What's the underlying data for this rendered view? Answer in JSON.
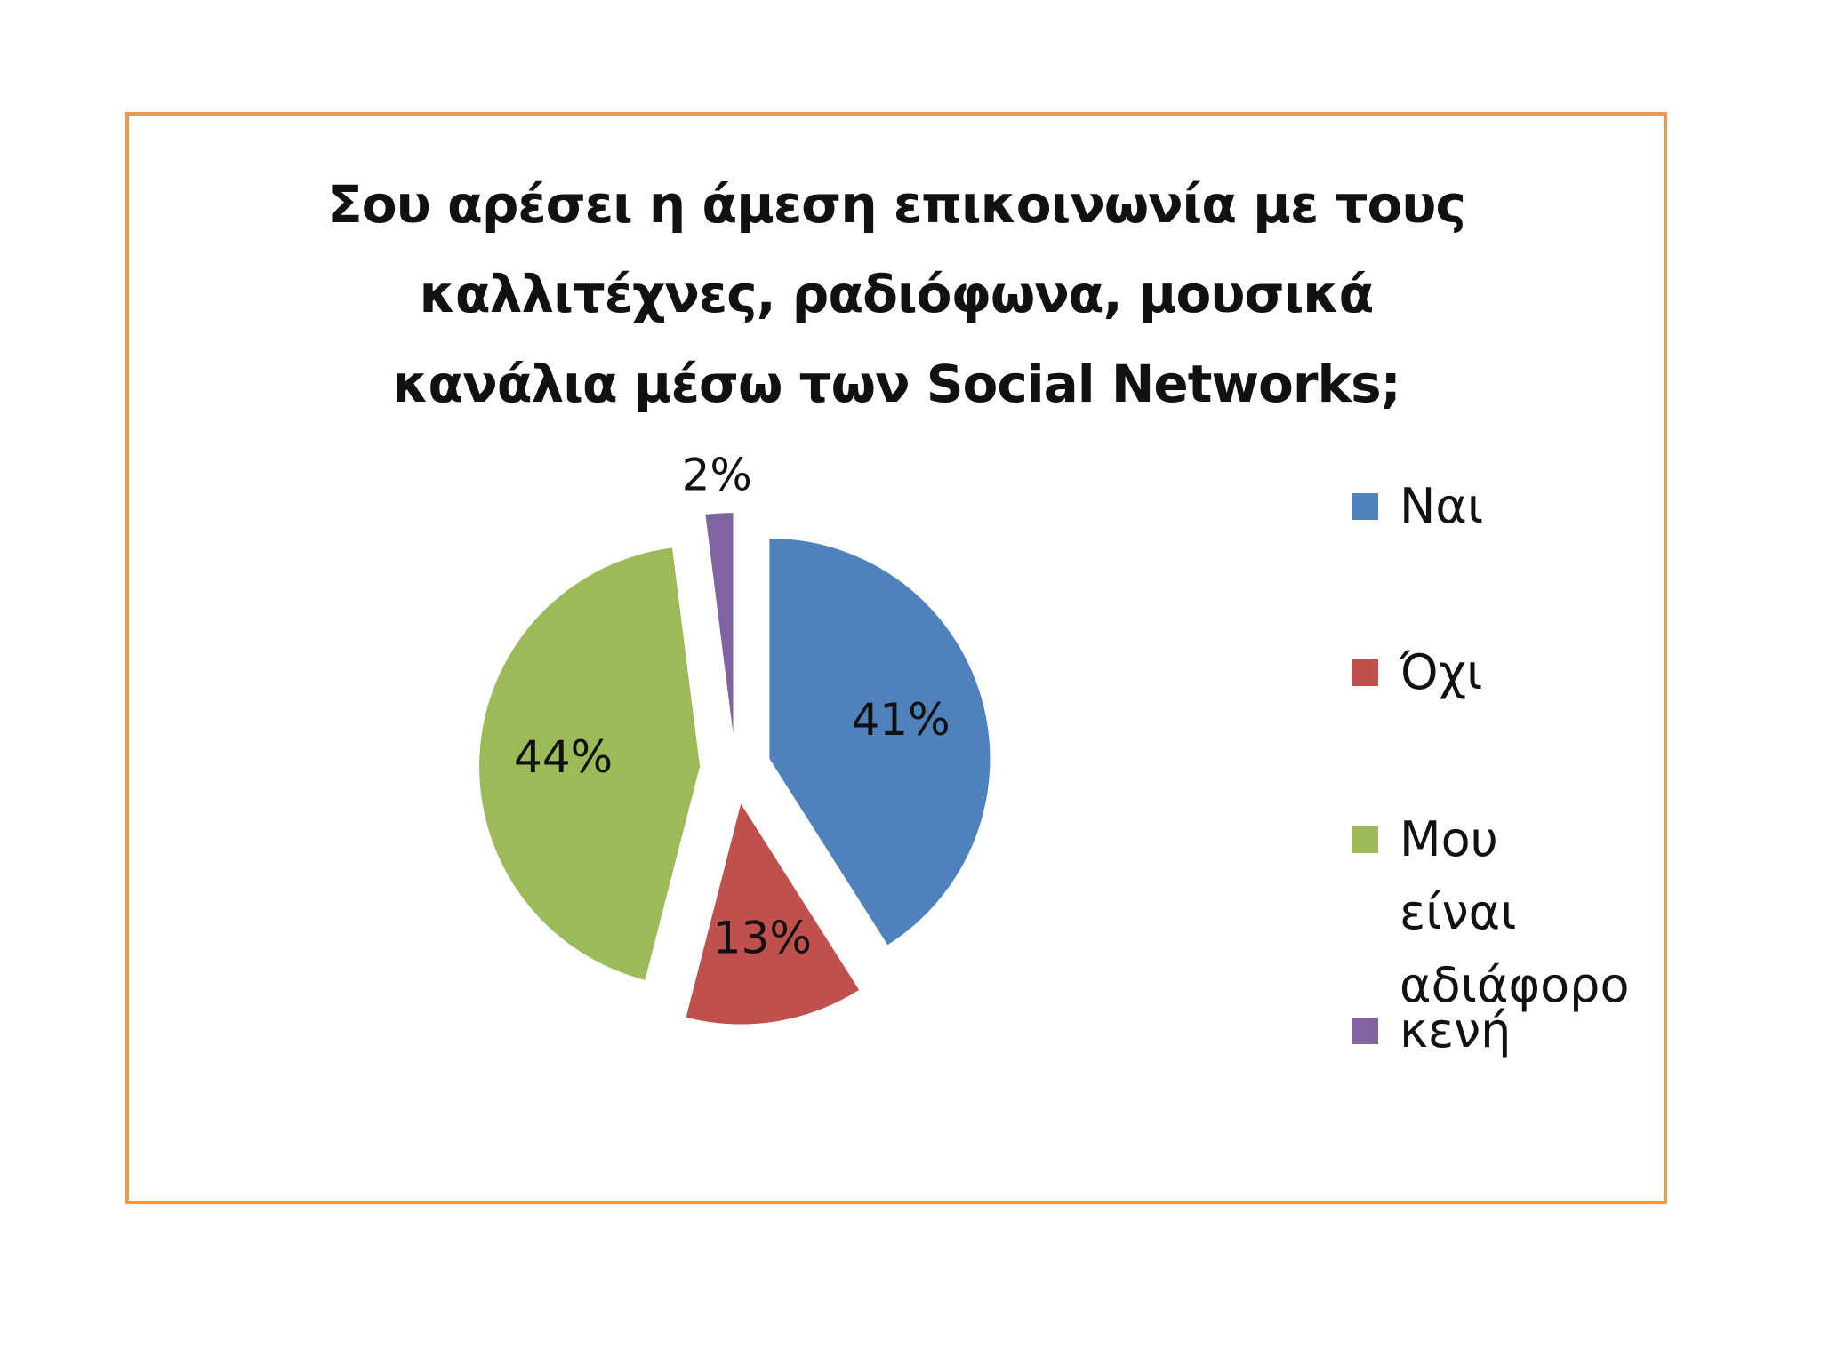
{
  "chart_data": {
    "type": "pie",
    "title": "Σου αρέσει η άμεση επικοινωνία με τους\nκαλλιτέχνες, ραδιόφωνα, μουσικά\nκανάλια μέσω των Social Networks;",
    "categories": [
      "Ναι",
      "Όχι",
      "Μου είναι\nαδιάφορο",
      "κενή"
    ],
    "values": [
      41,
      13,
      44,
      2
    ],
    "data_labels": [
      "41%",
      "13%",
      "44%",
      "2%"
    ],
    "colors": [
      "#4F81BD",
      "#C0504D",
      "#9BBB59",
      "#8064A2"
    ],
    "legend_position": "right",
    "exploded": true
  },
  "frame_color": "#F79646"
}
